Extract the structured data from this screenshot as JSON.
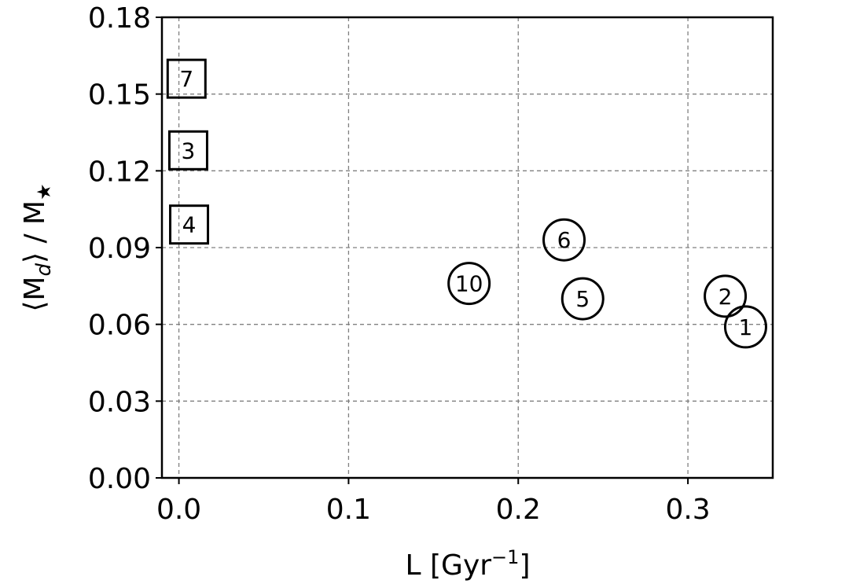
{
  "chart_data": {
    "type": "scatter",
    "xlabel": "L [Gyr",
    "xlabel_sup": "−1",
    "xlabel_end": "]",
    "ylabel": "⟨M",
    "ylabel_sub": "d",
    "ylabel_mid": "⟩ / M",
    "ylabel_sub2": "★",
    "xlim": [
      -0.01,
      0.35
    ],
    "ylim": [
      0.0,
      0.18
    ],
    "xticks": [
      0.0,
      0.1,
      0.2,
      0.3
    ],
    "xtick_labels": [
      "0.0",
      "0.1",
      "0.2",
      "0.3"
    ],
    "yticks": [
      0.0,
      0.03,
      0.06,
      0.09,
      0.12,
      0.15,
      0.18
    ],
    "ytick_labels": [
      "0.00",
      "0.03",
      "0.06",
      "0.09",
      "0.12",
      "0.15",
      "0.18"
    ],
    "grid": true,
    "points": [
      {
        "label": "7",
        "x": 0.0045,
        "y": 0.156,
        "marker": "square"
      },
      {
        "label": "3",
        "x": 0.0055,
        "y": 0.128,
        "marker": "square"
      },
      {
        "label": "4",
        "x": 0.006,
        "y": 0.099,
        "marker": "square"
      },
      {
        "label": "10",
        "x": 0.171,
        "y": 0.076,
        "marker": "circle"
      },
      {
        "label": "6",
        "x": 0.227,
        "y": 0.093,
        "marker": "circle"
      },
      {
        "label": "5",
        "x": 0.238,
        "y": 0.07,
        "marker": "circle"
      },
      {
        "label": "2",
        "x": 0.322,
        "y": 0.071,
        "marker": "circle"
      },
      {
        "label": "1",
        "x": 0.334,
        "y": 0.059,
        "marker": "circle"
      }
    ]
  }
}
